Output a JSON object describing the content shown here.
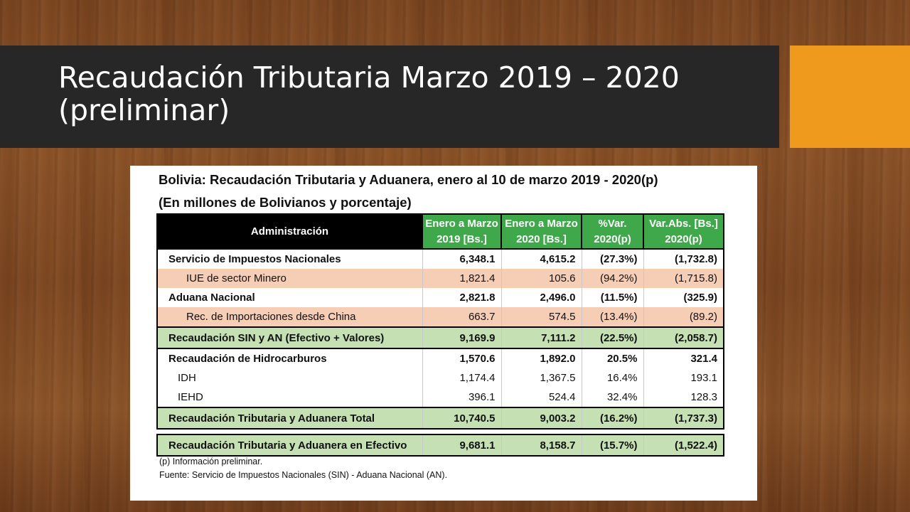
{
  "slide": {
    "title_line1": "Recaudación Tributaria Marzo 2019 – 2020",
    "title_line2": "(preliminar)",
    "accent_color": "#ef9a1d",
    "title_bar_color": "#272727"
  },
  "table_image": {
    "caption_line1": "Bolivia: Recaudación Tributaria y Aduanera, enero al 10 de marzo 2019 - 2020(p)",
    "caption_line2": "(En millones de Bolivianos y porcentaje)",
    "headers": {
      "admin": "Administración",
      "col1_l1": "Enero a Marzo",
      "col1_l2": "2019 [Bs.]",
      "col2_l1": "Enero a Marzo",
      "col2_l2": "2020 [Bs.]",
      "col3_l1": "%Var.",
      "col3_l2": "2020(p)",
      "col4_l1": "Var.Abs. [Bs.]",
      "col4_l2": "2020(p)"
    },
    "rows": [
      {
        "label": "Servicio de Impuestos Nacionales",
        "v2019": "6,348.1",
        "v2020": "4,615.2",
        "pct": "(27.3%)",
        "abs": "(1,732.8)"
      },
      {
        "label": "IUE de sector Minero",
        "v2019": "1,821.4",
        "v2020": "105.6",
        "pct": "(94.2%)",
        "abs": "(1,715.8)"
      },
      {
        "label": "Aduana Nacional",
        "v2019": "2,821.8",
        "v2020": "2,496.0",
        "pct": "(11.5%)",
        "abs": "(325.9)"
      },
      {
        "label": "Rec. de Importaciones desde China",
        "v2019": "663.7",
        "v2020": "574.5",
        "pct": "(13.4%)",
        "abs": "(89.2)"
      },
      {
        "label": "Recaudación SIN y AN (Efectivo + Valores)",
        "v2019": "9,169.9",
        "v2020": "7,111.2",
        "pct": "(22.5%)",
        "abs": "(2,058.7)"
      },
      {
        "label": "Recaudación de Hidrocarburos",
        "v2019": "1,570.6",
        "v2020": "1,892.0",
        "pct": "20.5%",
        "abs": "321.4"
      },
      {
        "label": "IDH",
        "v2019": "1,174.4",
        "v2020": "1,367.5",
        "pct": "16.4%",
        "abs": "193.1"
      },
      {
        "label": "IEHD",
        "v2019": "396.1",
        "v2020": "524.4",
        "pct": "32.4%",
        "abs": "128.3"
      },
      {
        "label": "Recaudación Tributaria y Aduanera Total",
        "v2019": "10,740.5",
        "v2020": "9,003.2",
        "pct": "(16.2%)",
        "abs": "(1,737.3)"
      },
      {
        "label": "Recaudación Tributaria y Aduanera en Efectivo",
        "v2019": "9,681.1",
        "v2020": "8,158.7",
        "pct": "(15.7%)",
        "abs": "(1,522.4)"
      }
    ],
    "note": "(p) Información preliminar.",
    "source": "Fuente: Servicio de Impuestos Nacionales (SIN) - Aduana Nacional (AN)."
  }
}
